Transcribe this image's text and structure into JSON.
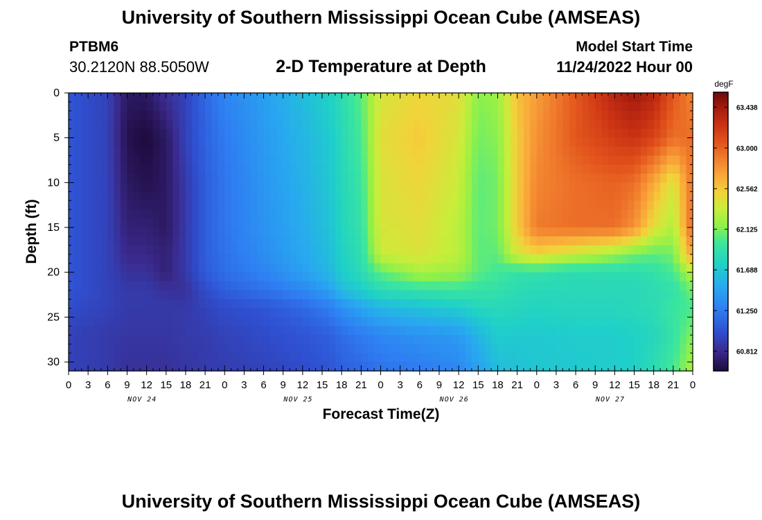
{
  "header": {
    "title": "University of Southern Mississippi Ocean Cube (AMSEAS)",
    "station_id": "PTBM6",
    "station_coords": "30.2120N  88.5050W",
    "chart_title": "2-D Temperature at Depth",
    "start_label": "Model Start Time",
    "start_value": "11/24/2022 Hour 00"
  },
  "footer": {
    "title": "University of Southern Mississippi Ocean Cube (AMSEAS)"
  },
  "chart_data": {
    "type": "heatmap",
    "title": "2-D Temperature at Depth",
    "xlabel": "Forecast Time(Z)",
    "ylabel": "Depth (ft)",
    "colorbar_unit": "degF",
    "x_hours": [
      0,
      3,
      6,
      9,
      12,
      15,
      18,
      21,
      24,
      27,
      30,
      33,
      36,
      39,
      42,
      45,
      48,
      51,
      54,
      57,
      60,
      63,
      66,
      69,
      72,
      75,
      78,
      81,
      84,
      87,
      90,
      93,
      96
    ],
    "x_tick_labels": [
      "0",
      "3",
      "6",
      "9",
      "12",
      "15",
      "18",
      "21",
      "0",
      "3",
      "6",
      "9",
      "12",
      "15",
      "18",
      "21",
      "0",
      "3",
      "6",
      "9",
      "12",
      "15",
      "18",
      "21",
      "0",
      "3",
      "6",
      "9",
      "12",
      "15",
      "18",
      "21",
      "0"
    ],
    "date_labels": [
      {
        "text": "NOV 24",
        "hour": 11
      },
      {
        "text": "NOV 25",
        "hour": 35
      },
      {
        "text": "NOV 26",
        "hour": 59
      },
      {
        "text": "NOV 27",
        "hour": 83
      }
    ],
    "y_ticks": [
      0,
      5,
      10,
      15,
      20,
      25,
      30
    ],
    "ylim": [
      0,
      31
    ],
    "xlim": [
      0,
      96
    ],
    "colorbar_ticks": [
      "63.438",
      "63.000",
      "62.562",
      "62.125",
      "61.688",
      "61.250",
      "60.812"
    ],
    "colorbar_range": [
      60.6,
      63.6
    ],
    "depths": [
      0,
      5,
      10,
      15,
      18,
      20,
      22,
      24,
      27,
      31
    ],
    "grid_hours": [
      0,
      6,
      9,
      12,
      15,
      18,
      21,
      24,
      30,
      36,
      40,
      42,
      45,
      48,
      54,
      60,
      63,
      66,
      69,
      72,
      78,
      84,
      87,
      90,
      93,
      96
    ],
    "values": [
      [
        61.05,
        60.95,
        60.7,
        60.7,
        60.85,
        60.95,
        61.15,
        61.3,
        61.45,
        61.62,
        61.75,
        61.85,
        62.05,
        62.4,
        62.5,
        62.45,
        62.15,
        62.2,
        62.6,
        62.75,
        63.05,
        63.35,
        63.45,
        63.35,
        63.05,
        62.85
      ],
      [
        61.05,
        60.95,
        60.65,
        60.6,
        60.7,
        60.95,
        61.12,
        61.25,
        61.42,
        61.58,
        61.7,
        61.82,
        62.0,
        62.45,
        62.55,
        62.4,
        62.1,
        62.15,
        62.55,
        62.8,
        63.05,
        63.2,
        63.25,
        63.15,
        62.95,
        62.95
      ],
      [
        61.05,
        60.95,
        60.7,
        60.65,
        60.7,
        60.9,
        61.1,
        61.22,
        61.4,
        61.55,
        61.68,
        61.8,
        61.95,
        62.42,
        62.5,
        62.35,
        62.05,
        62.1,
        62.55,
        62.85,
        62.95,
        63.0,
        62.95,
        62.7,
        62.4,
        62.95
      ],
      [
        61.05,
        60.95,
        60.75,
        60.75,
        60.7,
        60.9,
        61.1,
        61.22,
        61.38,
        61.52,
        61.65,
        61.78,
        61.92,
        62.4,
        62.45,
        62.3,
        62.05,
        62.1,
        62.55,
        62.9,
        62.95,
        62.95,
        62.8,
        62.45,
        62.25,
        63.0
      ],
      [
        61.05,
        60.95,
        60.8,
        60.8,
        60.75,
        60.9,
        61.1,
        61.2,
        61.35,
        61.5,
        61.62,
        61.75,
        61.88,
        62.35,
        62.42,
        62.3,
        62.05,
        62.05,
        62.4,
        62.5,
        62.35,
        62.2,
        62.1,
        62.05,
        62.1,
        62.75
      ],
      [
        61.05,
        60.95,
        60.85,
        60.85,
        60.75,
        60.9,
        61.08,
        61.18,
        61.3,
        61.45,
        61.58,
        61.72,
        61.85,
        62.05,
        62.25,
        62.2,
        62.05,
        61.98,
        61.9,
        61.9,
        61.85,
        61.85,
        61.85,
        61.9,
        62.0,
        62.3
      ],
      [
        61.05,
        60.95,
        60.9,
        60.9,
        60.85,
        60.85,
        61.0,
        61.1,
        61.2,
        61.32,
        61.45,
        61.62,
        61.72,
        61.85,
        61.92,
        61.95,
        61.92,
        61.9,
        61.85,
        61.82,
        61.82,
        61.82,
        61.82,
        61.85,
        61.9,
        62.1
      ],
      [
        61.0,
        60.95,
        60.9,
        60.9,
        60.9,
        60.9,
        60.95,
        61.0,
        61.05,
        61.15,
        61.25,
        61.35,
        61.48,
        61.58,
        61.65,
        61.72,
        61.8,
        61.82,
        61.8,
        61.78,
        61.8,
        61.8,
        61.82,
        61.85,
        61.95,
        62.0
      ],
      [
        60.95,
        60.9,
        60.88,
        60.88,
        60.88,
        60.9,
        60.92,
        60.95,
        61.0,
        61.05,
        61.1,
        61.18,
        61.25,
        61.32,
        61.38,
        61.42,
        61.58,
        61.72,
        61.7,
        61.7,
        61.72,
        61.72,
        61.75,
        61.8,
        61.92,
        62.15
      ],
      [
        60.95,
        60.9,
        60.85,
        60.85,
        60.85,
        60.88,
        60.9,
        60.92,
        60.95,
        61.0,
        61.05,
        61.1,
        61.15,
        61.2,
        61.25,
        61.32,
        61.45,
        61.62,
        61.65,
        61.68,
        61.7,
        61.72,
        61.75,
        61.85,
        62.0,
        62.25
      ]
    ],
    "color_stops": [
      {
        "t": 0.0,
        "color": "#1e0a3c"
      },
      {
        "t": 0.07,
        "color": "#3a2a8c"
      },
      {
        "t": 0.14,
        "color": "#2f4fd0"
      },
      {
        "t": 0.22,
        "color": "#2f7df2"
      },
      {
        "t": 0.3,
        "color": "#28a8f0"
      },
      {
        "t": 0.38,
        "color": "#1fd0c8"
      },
      {
        "t": 0.46,
        "color": "#3ee79a"
      },
      {
        "t": 0.52,
        "color": "#8ff04a"
      },
      {
        "t": 0.58,
        "color": "#c7ee3a"
      },
      {
        "t": 0.64,
        "color": "#f2d23a"
      },
      {
        "t": 0.7,
        "color": "#f9a83a"
      },
      {
        "t": 0.76,
        "color": "#f17f2e"
      },
      {
        "t": 0.82,
        "color": "#e2541c"
      },
      {
        "t": 0.88,
        "color": "#cb3414"
      },
      {
        "t": 0.94,
        "color": "#a81c0e"
      },
      {
        "t": 1.0,
        "color": "#6f0a06"
      }
    ]
  }
}
